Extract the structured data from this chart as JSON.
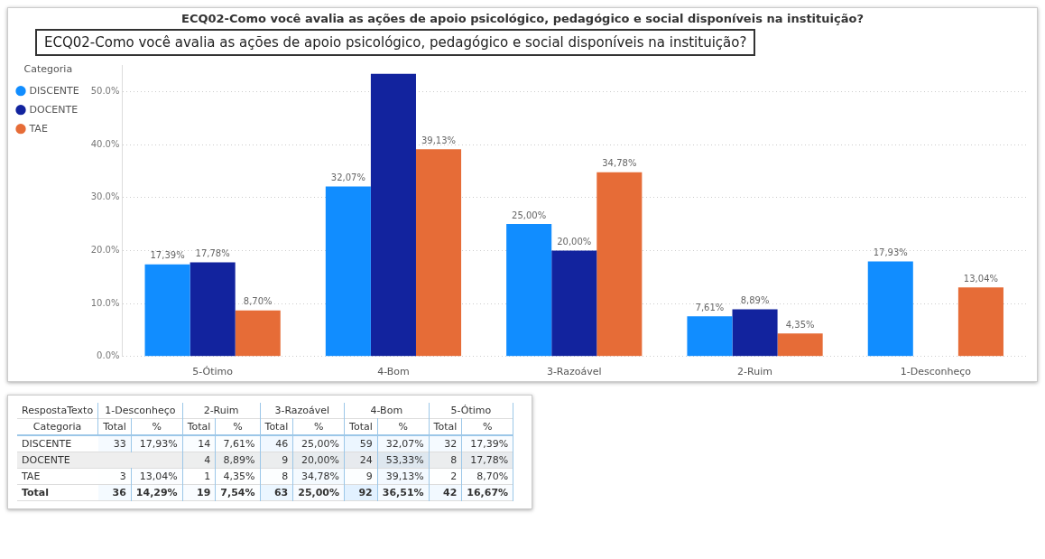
{
  "chart_data": [
    {
      "type": "bar",
      "title": "ECQ02-Como você avalia as ações de apoio psicológico, pedagógico e social disponíveis na instituição?",
      "annotations": [
        "ECQ02-Como você avalia as ações de apoio psicológico, pedagógico e social disponíveis na instituição?"
      ],
      "legend_title": "Categoria",
      "categories": [
        "5-Ótimo",
        "4-Bom",
        "3-Razoável",
        "2-Ruim",
        "1-Desconheço"
      ],
      "series": [
        {
          "name": "DISCENTE",
          "color": "#118dff",
          "values": [
            17.39,
            32.07,
            25.0,
            7.61,
            17.93
          ],
          "value_labels": [
            "17,39%",
            "32,07%",
            "25,00%",
            "7,61%",
            "17,93%"
          ]
        },
        {
          "name": "DOCENTE",
          "color": "#12239e",
          "values": [
            17.78,
            53.33,
            20.0,
            8.89,
            null
          ],
          "value_labels": [
            "17,78%",
            null,
            "20,00%",
            "8,89%",
            null
          ]
        },
        {
          "name": "TAE",
          "color": "#e66c37",
          "values": [
            8.7,
            39.13,
            34.78,
            4.35,
            13.04
          ],
          "value_labels": [
            "8,70%",
            "39,13%",
            "34,78%",
            "4,35%",
            "13,04%"
          ]
        }
      ],
      "ylim": [
        0,
        55
      ],
      "yticks": [
        {
          "value": 0,
          "label": "0.0%"
        },
        {
          "value": 10,
          "label": "10.0%"
        },
        {
          "value": 20,
          "label": "20.0%"
        },
        {
          "value": 30,
          "label": "30.0%"
        },
        {
          "value": 40,
          "label": "40.0%"
        },
        {
          "value": 50,
          "label": "50.0%"
        }
      ],
      "grid": "y",
      "legend": "top left"
    },
    {
      "type": "heatmap",
      "xlabel": "RespostaTexto",
      "ylabel": "Categoria",
      "annotations": [
        "1-Desconheço",
        "2-Ruim",
        "3-Razoável",
        "4-Bom",
        "5-Ótimo"
      ],
      "categories": [
        "Total",
        "%",
        "Total",
        "%",
        "Total",
        "%",
        "Total",
        "%",
        "Total",
        "%"
      ],
      "y_categories": [
        "DISCENTE",
        "DOCENTE",
        "TAE",
        "Total"
      ],
      "cells": [
        [
          33,
          17.93,
          14,
          7.61,
          46,
          25.0,
          59,
          32.07,
          32,
          17.39
        ],
        [
          null,
          null,
          4,
          8.89,
          9,
          20.0,
          24,
          53.33,
          8,
          17.78
        ],
        [
          3,
          13.04,
          1,
          4.35,
          8,
          34.78,
          9,
          39.13,
          2,
          8.7
        ],
        [
          36,
          14.29,
          19,
          7.54,
          63,
          25.0,
          92,
          36.51,
          42,
          16.67
        ]
      ],
      "cell_labels": [
        [
          "33",
          "17,93%",
          "14",
          "7,61%",
          "46",
          "25,00%",
          "59",
          "32,07%",
          "32",
          "17,39%"
        ],
        [
          null,
          null,
          "4",
          "8,89%",
          "9",
          "20,00%",
          "24",
          "53,33%",
          "8",
          "17,78%"
        ],
        [
          "3",
          "13,04%",
          "1",
          "4,35%",
          "8",
          "34,78%",
          "9",
          "39,13%",
          "2",
          "8,70%"
        ],
        [
          "36",
          "14,29%",
          "19",
          "7,54%",
          "63",
          "25,00%",
          "92",
          "36,51%",
          "42",
          "16,67%"
        ]
      ]
    }
  ]
}
